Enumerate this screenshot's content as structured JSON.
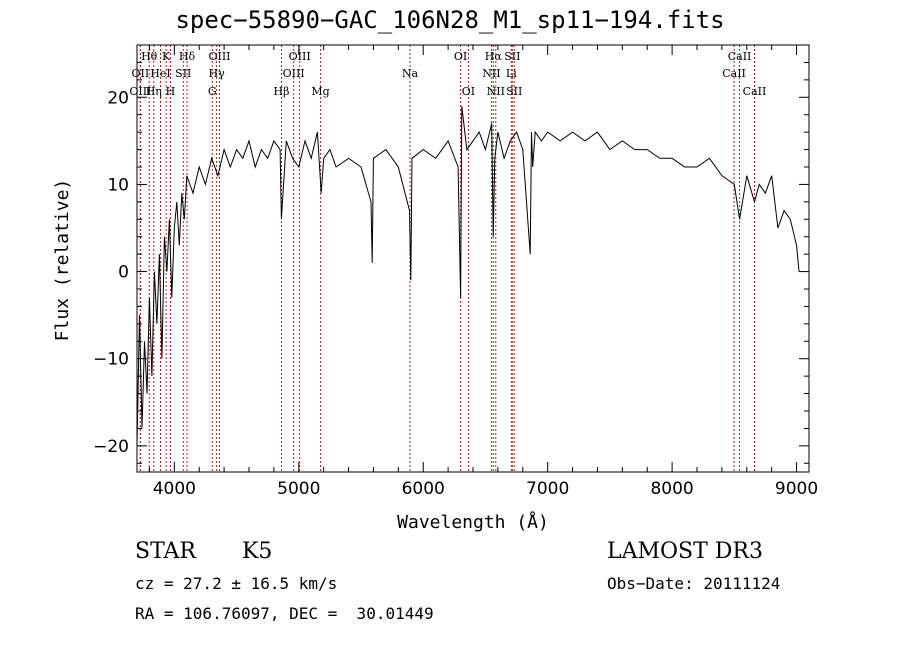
{
  "title": "spec−55890−GAC_106N28_M1_sp11−194.fits",
  "info": {
    "class": "STAR",
    "subclass": "K5",
    "survey": "LAMOST DR3",
    "cz": "cz = 27.2 ± 16.5 km/s",
    "obsdate": "Obs−Date: 20111124",
    "radec": "RA = 106.76097, DEC =  30.01449"
  },
  "chart_data": {
    "type": "line",
    "title": "spec−55890−GAC_106N28_M1_sp11−194.fits",
    "xlabel": "Wavelength (Å)",
    "ylabel": "Flux (relative)",
    "xlim": [
      3700,
      9100
    ],
    "ylim": [
      -23,
      26
    ],
    "xticks": [
      4000,
      5000,
      6000,
      7000,
      8000,
      9000
    ],
    "yticks": [
      -20,
      -10,
      0,
      10,
      20
    ],
    "line_color": "#000000",
    "marker_color": "#b22222",
    "series": [
      {
        "x": [
          3700,
          3720,
          3740,
          3760,
          3780,
          3800,
          3820,
          3840,
          3860,
          3880,
          3900,
          3920,
          3940,
          3960,
          3980,
          4000,
          4020,
          4040,
          4060,
          4080,
          4100,
          4150,
          4200,
          4250,
          4300,
          4350,
          4400,
          4450,
          4500,
          4550,
          4600,
          4650,
          4700,
          4750,
          4800,
          4850,
          4860,
          4900,
          4950,
          5000,
          5050,
          5100,
          5150,
          5180,
          5200,
          5250,
          5300,
          5400,
          5500,
          5580,
          5590,
          5600,
          5700,
          5800,
          5890,
          5900,
          5910,
          6000,
          6100,
          6200,
          6280,
          6300,
          6310,
          6350,
          6400,
          6450,
          6500,
          6550,
          6562,
          6575,
          6600,
          6650,
          6700,
          6750,
          6800,
          6860,
          6870,
          6880,
          6900,
          6950,
          7000,
          7100,
          7200,
          7300,
          7400,
          7500,
          7600,
          7700,
          7800,
          7900,
          8000,
          8100,
          8200,
          8300,
          8400,
          8500,
          8542,
          8600,
          8662,
          8700,
          8750,
          8800,
          8850,
          8900,
          8950,
          9000,
          9020
        ],
        "y": [
          -20,
          -5,
          -18,
          -8,
          -14,
          -3,
          -12,
          0,
          -6,
          2,
          -10,
          4,
          0,
          6,
          -3,
          5,
          8,
          3,
          9,
          6,
          11,
          9,
          12,
          10,
          13,
          11,
          14,
          12,
          14,
          13,
          15,
          12,
          14,
          13,
          15,
          14,
          6,
          15,
          13,
          12,
          15,
          13,
          16,
          9,
          13,
          14,
          12,
          13,
          12,
          8,
          1,
          13,
          14,
          12,
          7,
          -1,
          13,
          14,
          13,
          15,
          12,
          -3,
          19,
          14,
          15,
          16,
          14,
          17,
          4,
          13,
          16,
          13,
          15,
          16,
          14,
          2,
          16,
          12,
          16,
          15,
          16,
          15,
          16,
          15,
          16,
          14,
          15,
          14,
          14,
          13,
          13,
          12,
          12,
          13,
          11,
          10,
          6,
          11,
          8,
          10,
          9,
          11,
          5,
          7,
          6,
          3,
          0
        ]
      }
    ],
    "annotations": [
      {
        "label": "Hθ",
        "x": 3798,
        "row": 0
      },
      {
        "label": "OII",
        "x": 3727,
        "row": 1
      },
      {
        "label": "OIII",
        "x": 3727,
        "row": 2
      },
      {
        "label": "Hη",
        "x": 3835,
        "row": 2
      },
      {
        "label": "K",
        "x": 3934,
        "row": 0
      },
      {
        "label": "HeI",
        "x": 3889,
        "row": 1
      },
      {
        "label": "H",
        "x": 3969,
        "row": 2
      },
      {
        "label": "Hδ",
        "x": 4102,
        "row": 0
      },
      {
        "label": "SII",
        "x": 4072,
        "row": 1
      },
      {
        "label": "OIII",
        "x": 4363,
        "row": 0
      },
      {
        "label": "Hγ",
        "x": 4340,
        "row": 1
      },
      {
        "label": "G",
        "x": 4305,
        "row": 2
      },
      {
        "label": "Hβ",
        "x": 4861,
        "row": 2
      },
      {
        "label": "OIII",
        "x": 5007,
        "row": 0
      },
      {
        "label": "OIII",
        "x": 4959,
        "row": 1
      },
      {
        "label": "Mg",
        "x": 5175,
        "row": 2
      },
      {
        "label": "Na",
        "x": 5894,
        "row": 1
      },
      {
        "label": "OI",
        "x": 6300,
        "row": 0
      },
      {
        "label": "OI",
        "x": 6363,
        "row": 2
      },
      {
        "label": "Hα",
        "x": 6563,
        "row": 0
      },
      {
        "label": "NII",
        "x": 6548,
        "row": 1
      },
      {
        "label": "NII",
        "x": 6583,
        "row": 2
      },
      {
        "label": "SII",
        "x": 6716,
        "row": 0
      },
      {
        "label": "Li",
        "x": 6708,
        "row": 1
      },
      {
        "label": "SII",
        "x": 6731,
        "row": 2
      },
      {
        "label": "CaII",
        "x": 8542,
        "row": 0
      },
      {
        "label": "CaII",
        "x": 8498,
        "row": 1
      },
      {
        "label": "CaII",
        "x": 8662,
        "row": 2
      }
    ]
  }
}
